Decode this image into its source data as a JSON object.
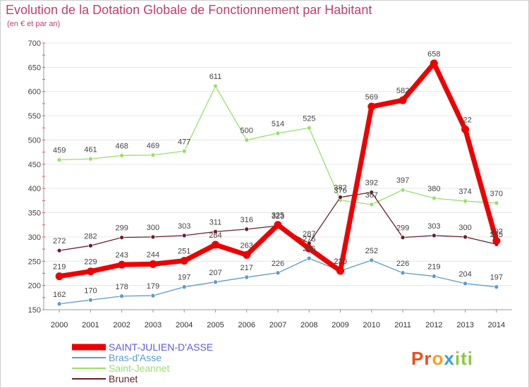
{
  "title": "Evolution de la Dotation Globale de Fonctionnement par Habitant",
  "subtitle": "(en € et par an)",
  "logo": {
    "text": "Proxiti",
    "letters": [
      "P",
      "r",
      "o",
      "x",
      "i",
      "t",
      "i"
    ],
    "colors": [
      "#e8501a",
      "#e8501a",
      "#f4a020",
      "#3aa0d8",
      "#8cc63f",
      "#8cc63f",
      "#8cc63f"
    ]
  },
  "chart_data": {
    "type": "line",
    "title": "Evolution de la Dotation Globale de Fonctionnement par Habitant",
    "subtitle": "(en € et par an)",
    "xlabel": "",
    "ylabel": "",
    "ylim": [
      150,
      700
    ],
    "yticks": [
      150,
      200,
      250,
      300,
      350,
      400,
      450,
      500,
      550,
      600,
      650,
      700
    ],
    "x": [
      "2000",
      "2001",
      "2002",
      "2003",
      "2004",
      "2005",
      "2006",
      "2007",
      "2008",
      "2009",
      "2010",
      "2011",
      "2012",
      "2013",
      "2014"
    ],
    "legend_position": "bottom-left",
    "series": [
      {
        "name": "SAINT-JULIEN-D'ASSE",
        "color": "#ee0000",
        "legend_color": "#5a5aee",
        "bold": true,
        "values": [
          219,
          229,
          243,
          244,
          251,
          284,
          263,
          325,
          276,
          230,
          569,
          582,
          658,
          522,
          292
        ]
      },
      {
        "name": "Bras-d'Asse",
        "color": "#5b9bd0",
        "legend_color": "#5b9bd0",
        "bold": false,
        "values": [
          162,
          170,
          178,
          179,
          197,
          207,
          217,
          226,
          256,
          230,
          252,
          226,
          219,
          204,
          197
        ]
      },
      {
        "name": "Saint-Jeannet",
        "color": "#99e06a",
        "legend_color": "#99e06a",
        "bold": false,
        "values": [
          459,
          461,
          468,
          469,
          477,
          611,
          500,
          514,
          525,
          376,
          367,
          397,
          380,
          374,
          370
        ]
      },
      {
        "name": "Brunet",
        "color": "#6b1f2a",
        "legend_color": "#6b1f2a",
        "bold": false,
        "values": [
          272,
          282,
          299,
          300,
          303,
          311,
          316,
          323,
          287,
          382,
          392,
          299,
          303,
          300,
          285
        ]
      }
    ]
  }
}
